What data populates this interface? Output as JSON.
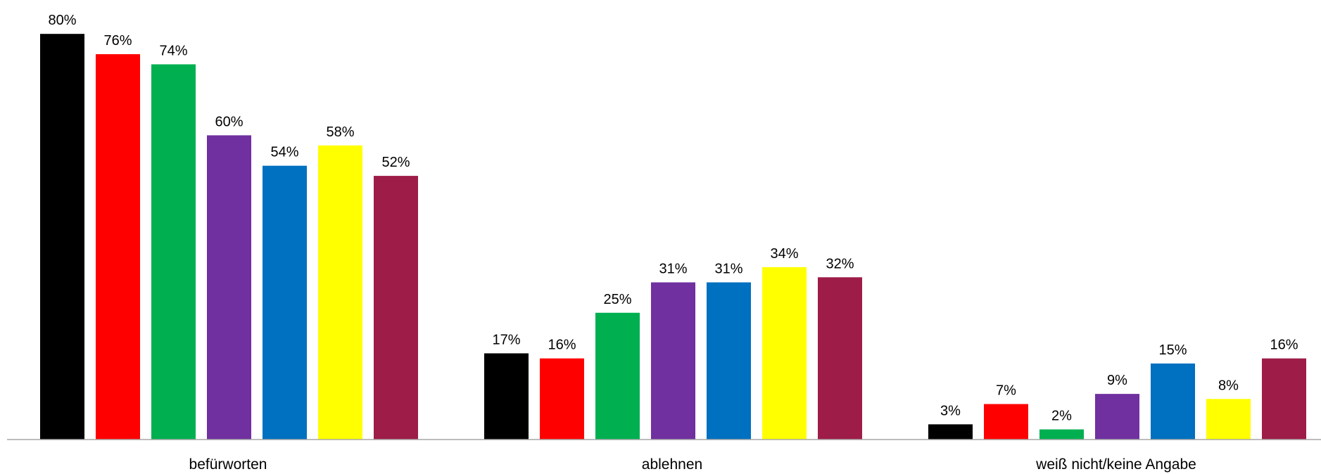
{
  "chart_data": {
    "type": "bar",
    "title": "",
    "xlabel": "",
    "ylabel": "",
    "ylim": [
      0,
      80
    ],
    "grid": false,
    "legend": "none",
    "categories": [
      "befürworten",
      "ablehnen",
      "weiß nicht/keine Angabe"
    ],
    "series": [
      {
        "color": "#000000",
        "values": [
          80,
          17,
          3
        ],
        "labels": [
          "80%",
          "17%",
          "3%"
        ]
      },
      {
        "color": "#ff0000",
        "values": [
          76,
          16,
          7
        ],
        "labels": [
          "76%",
          "16%",
          "7%"
        ]
      },
      {
        "color": "#00b050",
        "values": [
          74,
          25,
          2
        ],
        "labels": [
          "74%",
          "25%",
          "2%"
        ]
      },
      {
        "color": "#7030a0",
        "values": [
          60,
          31,
          9
        ],
        "labels": [
          "60%",
          "31%",
          "9%"
        ]
      },
      {
        "color": "#0070c0",
        "values": [
          54,
          31,
          15
        ],
        "labels": [
          "54%",
          "31%",
          "15%"
        ]
      },
      {
        "color": "#ffff00",
        "values": [
          58,
          34,
          8
        ],
        "labels": [
          "58%",
          "34%",
          "8%"
        ]
      },
      {
        "color": "#9e1c48",
        "values": [
          52,
          32,
          16
        ],
        "labels": [
          "52%",
          "32%",
          "16%"
        ]
      }
    ]
  }
}
